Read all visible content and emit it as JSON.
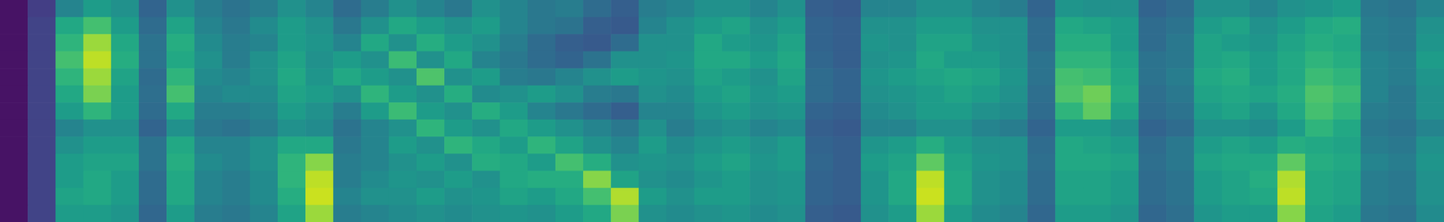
{
  "chart_data": {
    "type": "heatmap",
    "color": "viridis",
    "tick_labels": false,
    "zlim": [
      0,
      1
    ],
    "values": [
      [
        0.05,
        0.18,
        0.45,
        0.55,
        0.5,
        0.32,
        0.5,
        0.42,
        0.38,
        0.42,
        0.5,
        0.45,
        0.35,
        0.42,
        0.5,
        0.45,
        0.4,
        0.5,
        0.45,
        0.4,
        0.42,
        0.35,
        0.3,
        0.42,
        0.45,
        0.5,
        0.5,
        0.45,
        0.5,
        0.3,
        0.28,
        0.45,
        0.45,
        0.5,
        0.5,
        0.45,
        0.42,
        0.32,
        0.52,
        0.5,
        0.5,
        0.32,
        0.35,
        0.5,
        0.5,
        0.45,
        0.5,
        0.52,
        0.55,
        0.4,
        0.38,
        0.45
      ],
      [
        0.05,
        0.2,
        0.6,
        0.7,
        0.55,
        0.35,
        0.58,
        0.45,
        0.4,
        0.48,
        0.55,
        0.5,
        0.4,
        0.5,
        0.6,
        0.55,
        0.5,
        0.55,
        0.45,
        0.4,
        0.38,
        0.3,
        0.28,
        0.45,
        0.5,
        0.55,
        0.58,
        0.5,
        0.55,
        0.32,
        0.3,
        0.5,
        0.5,
        0.55,
        0.55,
        0.5,
        0.5,
        0.35,
        0.6,
        0.58,
        0.55,
        0.35,
        0.38,
        0.55,
        0.58,
        0.5,
        0.55,
        0.6,
        0.62,
        0.42,
        0.4,
        0.5
      ],
      [
        0.05,
        0.2,
        0.65,
        0.85,
        0.6,
        0.38,
        0.62,
        0.48,
        0.42,
        0.45,
        0.55,
        0.52,
        0.45,
        0.6,
        0.5,
        0.62,
        0.55,
        0.5,
        0.42,
        0.35,
        0.3,
        0.28,
        0.35,
        0.5,
        0.5,
        0.6,
        0.55,
        0.52,
        0.58,
        0.32,
        0.3,
        0.52,
        0.5,
        0.58,
        0.58,
        0.52,
        0.5,
        0.35,
        0.62,
        0.62,
        0.55,
        0.35,
        0.4,
        0.58,
        0.55,
        0.52,
        0.58,
        0.62,
        0.6,
        0.42,
        0.4,
        0.52
      ],
      [
        0.05,
        0.2,
        0.7,
        0.9,
        0.62,
        0.38,
        0.6,
        0.5,
        0.42,
        0.5,
        0.58,
        0.5,
        0.55,
        0.5,
        0.68,
        0.5,
        0.6,
        0.45,
        0.4,
        0.35,
        0.32,
        0.38,
        0.5,
        0.5,
        0.52,
        0.6,
        0.6,
        0.55,
        0.6,
        0.33,
        0.3,
        0.5,
        0.52,
        0.6,
        0.55,
        0.55,
        0.5,
        0.38,
        0.65,
        0.65,
        0.58,
        0.38,
        0.4,
        0.58,
        0.6,
        0.55,
        0.6,
        0.65,
        0.62,
        0.45,
        0.42,
        0.55
      ],
      [
        0.05,
        0.2,
        0.65,
        0.85,
        0.58,
        0.35,
        0.65,
        0.48,
        0.45,
        0.5,
        0.6,
        0.52,
        0.6,
        0.55,
        0.5,
        0.72,
        0.5,
        0.55,
        0.42,
        0.4,
        0.45,
        0.5,
        0.55,
        0.52,
        0.5,
        0.58,
        0.55,
        0.5,
        0.58,
        0.35,
        0.32,
        0.52,
        0.55,
        0.58,
        0.6,
        0.58,
        0.52,
        0.38,
        0.7,
        0.68,
        0.6,
        0.38,
        0.42,
        0.6,
        0.62,
        0.55,
        0.6,
        0.68,
        0.65,
        0.45,
        0.42,
        0.52
      ],
      [
        0.05,
        0.2,
        0.6,
        0.8,
        0.55,
        0.36,
        0.7,
        0.45,
        0.48,
        0.48,
        0.58,
        0.55,
        0.5,
        0.65,
        0.55,
        0.5,
        0.62,
        0.48,
        0.5,
        0.55,
        0.5,
        0.42,
        0.4,
        0.5,
        0.48,
        0.55,
        0.58,
        0.52,
        0.55,
        0.35,
        0.32,
        0.5,
        0.52,
        0.55,
        0.58,
        0.55,
        0.5,
        0.36,
        0.72,
        0.78,
        0.62,
        0.36,
        0.4,
        0.58,
        0.6,
        0.58,
        0.62,
        0.72,
        0.68,
        0.45,
        0.4,
        0.5
      ],
      [
        0.05,
        0.2,
        0.55,
        0.65,
        0.55,
        0.35,
        0.6,
        0.42,
        0.42,
        0.45,
        0.55,
        0.5,
        0.42,
        0.55,
        0.68,
        0.55,
        0.5,
        0.62,
        0.55,
        0.45,
        0.4,
        0.35,
        0.3,
        0.45,
        0.45,
        0.52,
        0.55,
        0.5,
        0.52,
        0.32,
        0.3,
        0.48,
        0.5,
        0.55,
        0.55,
        0.5,
        0.48,
        0.35,
        0.65,
        0.75,
        0.58,
        0.35,
        0.38,
        0.55,
        0.58,
        0.52,
        0.6,
        0.7,
        0.65,
        0.42,
        0.4,
        0.5
      ],
      [
        0.05,
        0.2,
        0.45,
        0.5,
        0.5,
        0.32,
        0.5,
        0.4,
        0.38,
        0.42,
        0.5,
        0.48,
        0.38,
        0.45,
        0.5,
        0.65,
        0.55,
        0.5,
        0.6,
        0.55,
        0.5,
        0.45,
        0.4,
        0.5,
        0.42,
        0.48,
        0.5,
        0.45,
        0.48,
        0.3,
        0.28,
        0.45,
        0.45,
        0.5,
        0.5,
        0.45,
        0.42,
        0.32,
        0.55,
        0.55,
        0.5,
        0.32,
        0.35,
        0.5,
        0.5,
        0.48,
        0.55,
        0.65,
        0.6,
        0.4,
        0.38,
        0.45
      ],
      [
        0.05,
        0.2,
        0.5,
        0.55,
        0.55,
        0.38,
        0.6,
        0.45,
        0.45,
        0.5,
        0.6,
        0.6,
        0.4,
        0.45,
        0.55,
        0.5,
        0.65,
        0.6,
        0.55,
        0.65,
        0.58,
        0.5,
        0.45,
        0.55,
        0.48,
        0.52,
        0.55,
        0.5,
        0.55,
        0.32,
        0.3,
        0.52,
        0.55,
        0.62,
        0.55,
        0.5,
        0.5,
        0.35,
        0.6,
        0.58,
        0.55,
        0.35,
        0.4,
        0.55,
        0.58,
        0.55,
        0.62,
        0.6,
        0.58,
        0.42,
        0.4,
        0.5
      ],
      [
        0.05,
        0.2,
        0.55,
        0.58,
        0.58,
        0.38,
        0.62,
        0.48,
        0.45,
        0.5,
        0.65,
        0.82,
        0.42,
        0.45,
        0.5,
        0.55,
        0.5,
        0.62,
        0.6,
        0.55,
        0.7,
        0.62,
        0.5,
        0.52,
        0.5,
        0.55,
        0.58,
        0.52,
        0.55,
        0.33,
        0.3,
        0.55,
        0.58,
        0.75,
        0.58,
        0.52,
        0.5,
        0.36,
        0.6,
        0.6,
        0.58,
        0.36,
        0.4,
        0.58,
        0.6,
        0.6,
        0.75,
        0.62,
        0.6,
        0.45,
        0.42,
        0.52
      ],
      [
        0.05,
        0.2,
        0.55,
        0.6,
        0.55,
        0.35,
        0.6,
        0.45,
        0.42,
        0.48,
        0.65,
        0.9,
        0.42,
        0.48,
        0.52,
        0.5,
        0.55,
        0.5,
        0.6,
        0.62,
        0.62,
        0.82,
        0.58,
        0.5,
        0.48,
        0.52,
        0.55,
        0.5,
        0.52,
        0.32,
        0.3,
        0.52,
        0.6,
        0.9,
        0.6,
        0.5,
        0.48,
        0.35,
        0.58,
        0.58,
        0.55,
        0.35,
        0.38,
        0.55,
        0.58,
        0.62,
        0.88,
        0.6,
        0.58,
        0.42,
        0.4,
        0.5
      ],
      [
        0.05,
        0.2,
        0.58,
        0.6,
        0.55,
        0.35,
        0.6,
        0.45,
        0.42,
        0.48,
        0.62,
        0.92,
        0.45,
        0.5,
        0.5,
        0.55,
        0.5,
        0.52,
        0.58,
        0.55,
        0.6,
        0.7,
        0.88,
        0.55,
        0.5,
        0.55,
        0.55,
        0.5,
        0.52,
        0.32,
        0.3,
        0.52,
        0.6,
        0.92,
        0.6,
        0.5,
        0.48,
        0.35,
        0.58,
        0.58,
        0.55,
        0.35,
        0.38,
        0.55,
        0.58,
        0.6,
        0.9,
        0.6,
        0.58,
        0.42,
        0.4,
        0.5
      ],
      [
        0.05,
        0.2,
        0.55,
        0.55,
        0.52,
        0.33,
        0.55,
        0.42,
        0.4,
        0.45,
        0.58,
        0.85,
        0.42,
        0.45,
        0.48,
        0.5,
        0.48,
        0.5,
        0.52,
        0.5,
        0.55,
        0.6,
        0.8,
        0.5,
        0.48,
        0.5,
        0.52,
        0.48,
        0.5,
        0.3,
        0.28,
        0.5,
        0.55,
        0.85,
        0.55,
        0.48,
        0.45,
        0.33,
        0.55,
        0.55,
        0.52,
        0.33,
        0.36,
        0.52,
        0.55,
        0.55,
        0.82,
        0.58,
        0.55,
        0.4,
        0.38,
        0.48
      ]
    ]
  }
}
